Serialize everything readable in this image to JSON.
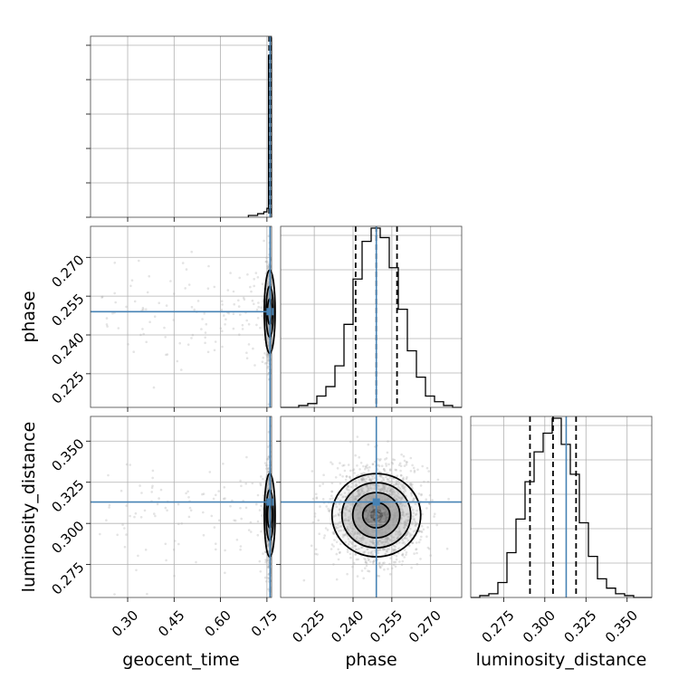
{
  "chart_data": {
    "type": "corner",
    "parameters": [
      {
        "name": "geocent_time",
        "xlabel": "geocent_time",
        "ylabel": "",
        "range": [
          0.18,
          0.765
        ],
        "ticks": [
          "0.30",
          "0.45",
          "0.60",
          "0.75"
        ],
        "truth": 0.76,
        "quantiles": [
          0.757,
          0.759,
          0.762
        ]
      },
      {
        "name": "phase",
        "xlabel": "phase",
        "ylabel": "phase",
        "range": [
          0.212,
          0.282
        ],
        "ticks": [
          "0.225",
          "0.240",
          "0.255",
          "0.270"
        ],
        "truth": 0.249,
        "quantiles": [
          0.241,
          0.249,
          0.257
        ]
      },
      {
        "name": "luminosity_distance",
        "xlabel": "luminosity_distance",
        "ylabel": "luminosity_distance",
        "range": [
          0.255,
          0.365
        ],
        "ticks": [
          "0.275",
          "0.300",
          "0.325",
          "0.350"
        ],
        "truth": 0.313,
        "quantiles": [
          0.291,
          0.305,
          0.319
        ]
      }
    ],
    "histograms": {
      "geocent_time": {
        "bin_edges": [
          0.69,
          0.7,
          0.71,
          0.72,
          0.73,
          0.74,
          0.75,
          0.755,
          0.76,
          0.765
        ],
        "counts": [
          1,
          1,
          1,
          2,
          2,
          3,
          5,
          90,
          100
        ]
      },
      "phase": {
        "bin_edges": [
          0.212,
          0.2155,
          0.219,
          0.2225,
          0.226,
          0.2295,
          0.233,
          0.2365,
          0.24,
          0.2435,
          0.247,
          0.2505,
          0.254,
          0.2575,
          0.261,
          0.2645,
          0.268,
          0.2715,
          0.275,
          0.2785,
          0.282
        ],
        "counts": [
          0,
          0,
          1,
          2,
          6,
          11,
          22,
          44,
          68,
          88,
          95,
          90,
          74,
          52,
          30,
          16,
          6,
          3,
          1,
          0
        ]
      },
      "luminosity_distance": {
        "bin_edges": [
          0.255,
          0.2605,
          0.266,
          0.2715,
          0.277,
          0.2825,
          0.288,
          0.2935,
          0.299,
          0.3045,
          0.31,
          0.3155,
          0.321,
          0.3265,
          0.332,
          0.3375,
          0.343,
          0.3485,
          0.354,
          0.3595,
          0.365
        ],
        "counts": [
          0,
          1,
          2,
          8,
          24,
          42,
          62,
          78,
          88,
          96,
          82,
          66,
          40,
          22,
          10,
          5,
          2,
          1,
          0,
          0
        ]
      }
    },
    "truth_color": "#4682b4",
    "hist_color": "#000000"
  }
}
